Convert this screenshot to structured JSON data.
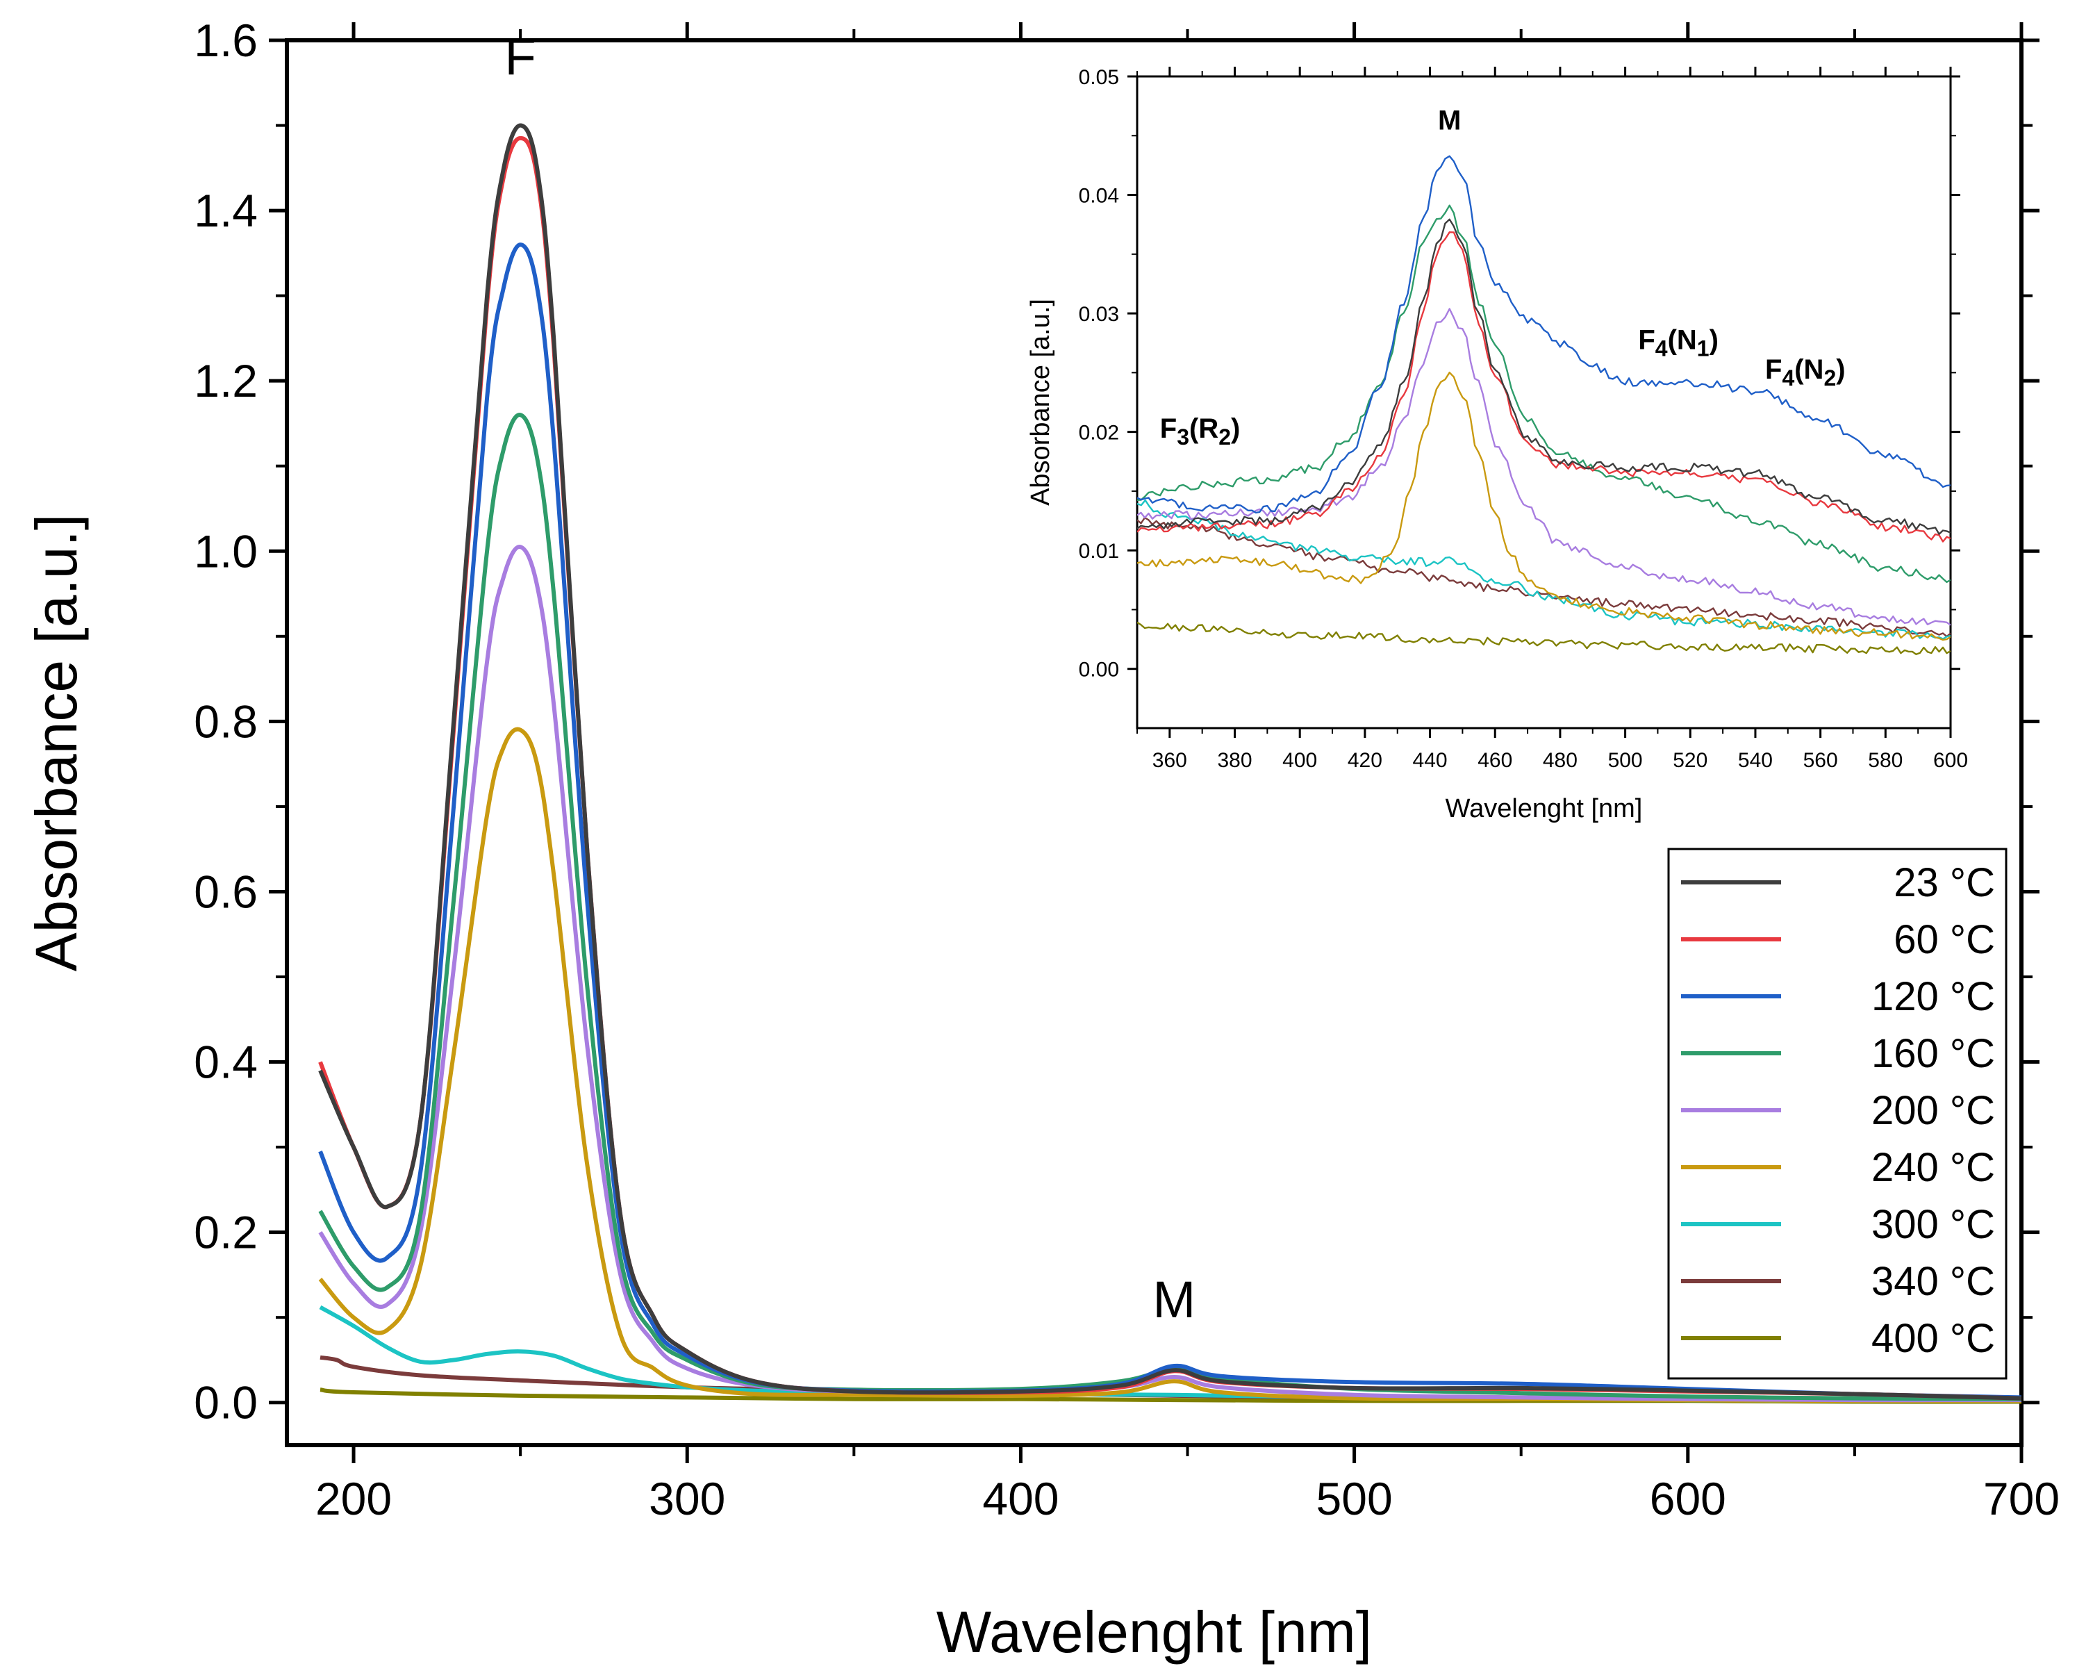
{
  "chart_data": [
    {
      "type": "line",
      "id": "main",
      "title": "",
      "xlabel": "Wavelenght [nm]",
      "ylabel": "Absorbance [a.u.]",
      "xlim": [
        180,
        700
      ],
      "ylim": [
        -0.05,
        1.6
      ],
      "x_ticks": [
        200,
        300,
        400,
        500,
        600,
        700
      ],
      "x_tick_labels": [
        "200",
        "300",
        "400",
        "500",
        "600",
        "700"
      ],
      "y_ticks": [
        0.0,
        0.2,
        0.4,
        0.6,
        0.8,
        1.0,
        1.2,
        1.4,
        1.6
      ],
      "y_tick_labels": [
        "0.0",
        "0.2",
        "0.4",
        "0.6",
        "0.8",
        "1.0",
        "1.2",
        "1.4",
        "1.6"
      ],
      "annotations": [
        {
          "text": "F",
          "x": 250,
          "y": 1.56
        },
        {
          "text": "M",
          "x": 446,
          "y": 0.1
        }
      ],
      "legend_placement": "bottom-right",
      "series": [
        {
          "name": "23 °C",
          "color": "#3d3d3d",
          "x": [
            190,
            200,
            210,
            220,
            230,
            240,
            245,
            250,
            255,
            260,
            270,
            280,
            290,
            300,
            320,
            350,
            400,
            430,
            446,
            460,
            500,
            550,
            600,
            650,
            700
          ],
          "y": [
            0.39,
            0.3,
            0.23,
            0.33,
            0.8,
            1.3,
            1.45,
            1.5,
            1.45,
            1.25,
            0.65,
            0.22,
            0.1,
            0.06,
            0.025,
            0.013,
            0.013,
            0.02,
            0.038,
            0.025,
            0.017,
            0.017,
            0.014,
            0.01,
            0.005
          ]
        },
        {
          "name": "60 °C",
          "color": "#e8393f",
          "x": [
            190,
            200,
            210,
            220,
            230,
            240,
            245,
            250,
            255,
            260,
            270,
            280,
            290,
            300,
            320,
            350,
            400,
            430,
            446,
            460,
            500,
            550,
            600,
            650,
            700
          ],
          "y": [
            0.4,
            0.3,
            0.23,
            0.33,
            0.79,
            1.29,
            1.44,
            1.485,
            1.44,
            1.24,
            0.65,
            0.22,
            0.1,
            0.06,
            0.025,
            0.013,
            0.012,
            0.018,
            0.037,
            0.024,
            0.017,
            0.016,
            0.013,
            0.01,
            0.005
          ]
        },
        {
          "name": "120 °C",
          "color": "#1f5fc8",
          "x": [
            190,
            200,
            210,
            220,
            230,
            240,
            245,
            250,
            255,
            260,
            270,
            280,
            290,
            300,
            320,
            350,
            400,
            430,
            446,
            460,
            500,
            550,
            600,
            650,
            700
          ],
          "y": [
            0.295,
            0.2,
            0.17,
            0.27,
            0.7,
            1.18,
            1.31,
            1.36,
            1.31,
            1.13,
            0.59,
            0.2,
            0.09,
            0.055,
            0.024,
            0.014,
            0.014,
            0.022,
            0.043,
            0.031,
            0.024,
            0.022,
            0.016,
            0.01,
            0.006
          ]
        },
        {
          "name": "160 °C",
          "color": "#2e9c6a",
          "x": [
            190,
            200,
            210,
            220,
            230,
            240,
            245,
            250,
            255,
            260,
            270,
            280,
            290,
            300,
            320,
            350,
            400,
            430,
            446,
            460,
            500,
            550,
            600,
            650,
            700
          ],
          "y": [
            0.225,
            0.16,
            0.135,
            0.22,
            0.59,
            1.0,
            1.12,
            1.16,
            1.11,
            0.95,
            0.49,
            0.17,
            0.08,
            0.05,
            0.022,
            0.015,
            0.016,
            0.025,
            0.039,
            0.028,
            0.016,
            0.011,
            0.007,
            0.005,
            0.004
          ]
        },
        {
          "name": "200 °C",
          "color": "#a87de0",
          "x": [
            190,
            200,
            210,
            220,
            230,
            240,
            245,
            250,
            255,
            260,
            270,
            280,
            290,
            300,
            320,
            350,
            400,
            430,
            446,
            460,
            500,
            550,
            600,
            650,
            700
          ],
          "y": [
            0.2,
            0.14,
            0.115,
            0.2,
            0.51,
            0.87,
            0.97,
            1.005,
            0.96,
            0.82,
            0.42,
            0.15,
            0.07,
            0.04,
            0.02,
            0.013,
            0.013,
            0.018,
            0.03,
            0.018,
            0.009,
            0.006,
            0.004,
            0.003,
            0.003
          ]
        },
        {
          "name": "240 °C",
          "color": "#c99a10",
          "x": [
            190,
            200,
            210,
            220,
            230,
            240,
            245,
            250,
            255,
            260,
            270,
            280,
            290,
            300,
            320,
            350,
            400,
            430,
            446,
            460,
            500,
            550,
            600,
            650,
            700
          ],
          "y": [
            0.145,
            0.1,
            0.085,
            0.16,
            0.41,
            0.69,
            0.77,
            0.79,
            0.75,
            0.62,
            0.28,
            0.08,
            0.04,
            0.02,
            0.01,
            0.009,
            0.008,
            0.012,
            0.025,
            0.012,
            0.005,
            0.004,
            0.003,
            0.002,
            0.002
          ]
        },
        {
          "name": "300 °C",
          "color": "#1cc4c4",
          "x": [
            190,
            200,
            210,
            220,
            230,
            240,
            250,
            260,
            270,
            280,
            290,
            300,
            320,
            350,
            400,
            446,
            500,
            550,
            600,
            650,
            700
          ],
          "y": [
            0.112,
            0.09,
            0.065,
            0.048,
            0.05,
            0.057,
            0.06,
            0.055,
            0.04,
            0.028,
            0.022,
            0.018,
            0.014,
            0.012,
            0.01,
            0.009,
            0.006,
            0.005,
            0.003,
            0.002,
            0.002
          ]
        },
        {
          "name": "340 °C",
          "color": "#7b3b3b",
          "x": [
            190,
            195,
            200,
            220,
            250,
            300,
            350,
            400,
            446,
            500,
            550,
            600,
            650,
            700
          ],
          "y": [
            0.053,
            0.05,
            0.042,
            0.032,
            0.026,
            0.018,
            0.014,
            0.011,
            0.008,
            0.006,
            0.005,
            0.004,
            0.003,
            0.002
          ]
        },
        {
          "name": "400 °C",
          "color": "#808000",
          "x": [
            190,
            200,
            250,
            300,
            350,
            400,
            446,
            500,
            550,
            600,
            650,
            700
          ],
          "y": [
            0.015,
            0.012,
            0.008,
            0.006,
            0.004,
            0.004,
            0.003,
            0.002,
            0.002,
            0.002,
            0.001,
            0.001
          ]
        }
      ]
    },
    {
      "type": "line",
      "id": "inset",
      "title": "",
      "xlabel": "Wavelenght [nm]",
      "ylabel": "Absorbance [a.u.]",
      "xlim": [
        350,
        600
      ],
      "ylim": [
        -0.005,
        0.05
      ],
      "x_ticks": [
        360,
        380,
        400,
        420,
        440,
        460,
        480,
        500,
        520,
        540,
        560,
        580,
        600
      ],
      "x_tick_labels": [
        "360",
        "380",
        "400",
        "420",
        "440",
        "460",
        "480",
        "500",
        "520",
        "540",
        "560",
        "580",
        "600"
      ],
      "y_ticks": [
        0.0,
        0.01,
        0.02,
        0.03,
        0.04,
        0.05
      ],
      "y_tick_labels": [
        "0.00",
        "0.01",
        "0.02",
        "0.03",
        "0.04",
        "0.05"
      ],
      "annotations": [
        {
          "text": "M",
          "x": 446,
          "y": 0.0455
        },
        {
          "text": "F3(R2)",
          "base": "F",
          "sub1": "3",
          "mid": "(R",
          "sub2": "2",
          "end": ")",
          "x": 357,
          "y": 0.0195
        },
        {
          "text": "F4(N1)",
          "base": "F",
          "sub1": "4",
          "mid": "(N",
          "sub2": "1",
          "end": ")",
          "x": 504,
          "y": 0.027
        },
        {
          "text": "F4(N2)",
          "base": "F",
          "sub1": "4",
          "mid": "(N",
          "sub2": "2",
          "end": ")",
          "x": 543,
          "y": 0.0245
        }
      ],
      "series": [
        {
          "name": "23 °C",
          "color": "#3d3d3d",
          "x": [
            350,
            370,
            390,
            405,
            415,
            425,
            432,
            438,
            442,
            446,
            450,
            455,
            460,
            470,
            480,
            490,
            500,
            520,
            540,
            560,
            580,
            600
          ],
          "y": [
            0.012,
            0.0125,
            0.0125,
            0.0135,
            0.0155,
            0.019,
            0.024,
            0.031,
            0.036,
            0.0382,
            0.036,
            0.03,
            0.025,
            0.0195,
            0.0175,
            0.0172,
            0.017,
            0.017,
            0.0165,
            0.0145,
            0.0125,
            0.0115
          ]
        },
        {
          "name": "60 °C",
          "color": "#e8393f",
          "x": [
            350,
            370,
            390,
            405,
            415,
            425,
            432,
            438,
            442,
            446,
            450,
            455,
            460,
            470,
            480,
            490,
            500,
            520,
            540,
            560,
            580,
            600
          ],
          "y": [
            0.0118,
            0.012,
            0.0122,
            0.013,
            0.015,
            0.018,
            0.023,
            0.03,
            0.035,
            0.037,
            0.0352,
            0.029,
            0.0245,
            0.019,
            0.0172,
            0.017,
            0.0165,
            0.0165,
            0.016,
            0.014,
            0.012,
            0.011
          ]
        },
        {
          "name": "120 °C",
          "color": "#1f5fc8",
          "x": [
            350,
            370,
            390,
            405,
            415,
            425,
            432,
            438,
            442,
            446,
            450,
            455,
            460,
            470,
            480,
            490,
            500,
            520,
            540,
            560,
            580,
            600
          ],
          "y": [
            0.0145,
            0.0135,
            0.0135,
            0.015,
            0.018,
            0.024,
            0.031,
            0.038,
            0.042,
            0.0435,
            0.0415,
            0.036,
            0.0325,
            0.0295,
            0.0275,
            0.0255,
            0.0242,
            0.0242,
            0.0235,
            0.021,
            0.018,
            0.0155
          ]
        },
        {
          "name": "160 °C",
          "color": "#2e9c6a",
          "x": [
            350,
            370,
            390,
            405,
            415,
            425,
            432,
            438,
            442,
            446,
            450,
            455,
            460,
            470,
            480,
            500,
            520,
            540,
            560,
            580,
            600
          ],
          "y": [
            0.0145,
            0.0155,
            0.016,
            0.017,
            0.0195,
            0.024,
            0.03,
            0.036,
            0.038,
            0.039,
            0.0365,
            0.031,
            0.027,
            0.021,
            0.018,
            0.016,
            0.0145,
            0.0125,
            0.0105,
            0.0085,
            0.0075
          ]
        },
        {
          "name": "200 °C",
          "color": "#a87de0",
          "x": [
            350,
            370,
            390,
            405,
            415,
            425,
            432,
            438,
            442,
            446,
            450,
            455,
            460,
            470,
            480,
            500,
            520,
            540,
            560,
            580,
            600
          ],
          "y": [
            0.013,
            0.013,
            0.0132,
            0.0135,
            0.0145,
            0.017,
            0.021,
            0.026,
            0.029,
            0.0303,
            0.0285,
            0.024,
            0.019,
            0.0135,
            0.0105,
            0.0085,
            0.0075,
            0.0065,
            0.0052,
            0.0042,
            0.0037
          ]
        },
        {
          "name": "240 °C",
          "color": "#c99a10",
          "x": [
            350,
            370,
            390,
            400,
            410,
            420,
            428,
            434,
            438,
            442,
            446,
            450,
            455,
            460,
            465,
            470,
            480,
            490,
            500,
            520,
            540,
            560,
            580,
            600
          ],
          "y": [
            0.0088,
            0.0092,
            0.009,
            0.0085,
            0.0078,
            0.0075,
            0.0095,
            0.015,
            0.02,
            0.0235,
            0.025,
            0.023,
            0.0185,
            0.013,
            0.0095,
            0.0075,
            0.006,
            0.0052,
            0.0048,
            0.0042,
            0.0037,
            0.0032,
            0.003,
            0.0027
          ]
        },
        {
          "name": "300 °C",
          "color": "#1cc4c4",
          "x": [
            350,
            360,
            370,
            380,
            390,
            400,
            420,
            440,
            446,
            460,
            480,
            500,
            520,
            540,
            560,
            580,
            600
          ],
          "y": [
            0.0142,
            0.013,
            0.0125,
            0.0115,
            0.0108,
            0.0102,
            0.0093,
            0.009,
            0.0092,
            0.0075,
            0.0058,
            0.0045,
            0.004,
            0.0038,
            0.0033,
            0.003,
            0.0028
          ]
        },
        {
          "name": "340 °C",
          "color": "#7b3b3b",
          "x": [
            350,
            370,
            390,
            410,
            430,
            446,
            460,
            480,
            500,
            520,
            540,
            560,
            580,
            600
          ],
          "y": [
            0.0125,
            0.0118,
            0.0105,
            0.0093,
            0.0082,
            0.0075,
            0.0068,
            0.006,
            0.0055,
            0.005,
            0.0045,
            0.004,
            0.0034,
            0.003
          ]
        },
        {
          "name": "400 °C",
          "color": "#808000",
          "x": [
            350,
            370,
            390,
            410,
            430,
            446,
            460,
            480,
            500,
            520,
            540,
            560,
            580,
            600
          ],
          "y": [
            0.0038,
            0.0034,
            0.003,
            0.0028,
            0.0026,
            0.0024,
            0.0023,
            0.0021,
            0.002,
            0.0019,
            0.0018,
            0.0017,
            0.0016,
            0.0015
          ]
        }
      ]
    }
  ]
}
